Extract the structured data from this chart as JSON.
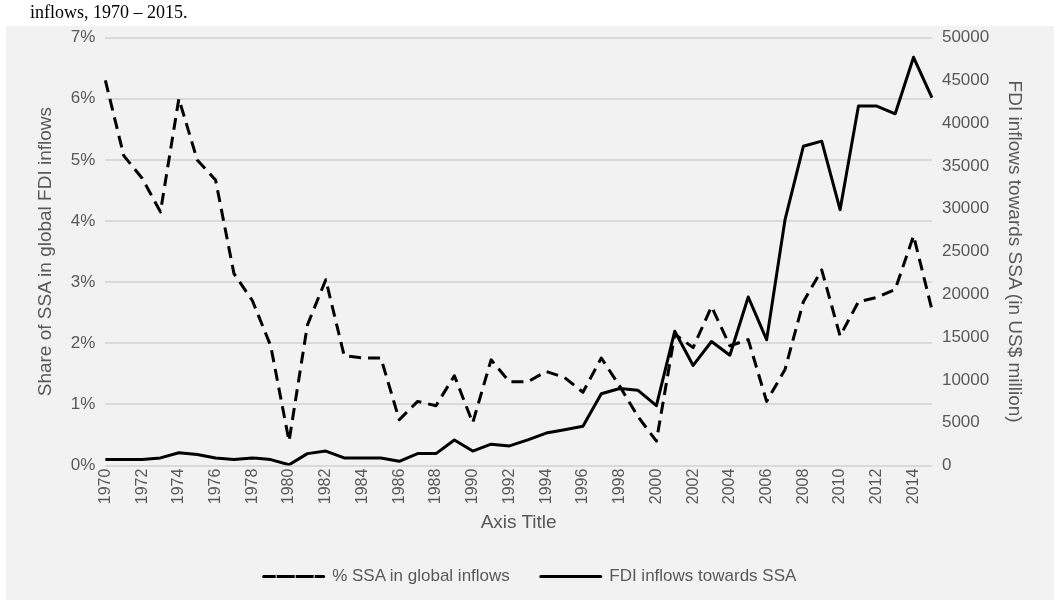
{
  "chart_data": {
    "type": "line",
    "title": "inflows, 1970 – 2015.",
    "xlabel": "Axis Title",
    "ylabel": "Share of SSA in global FDI inflows",
    "y2label": "FDI inflows towards SSA (in US$ million)",
    "categories": [
      "1970",
      null,
      "1972",
      null,
      "1974",
      null,
      "1976",
      null,
      "1978",
      null,
      "1980",
      null,
      "1982",
      null,
      "1984",
      null,
      "1986",
      null,
      "1988",
      null,
      "1990",
      null,
      "1992",
      null,
      "1994",
      null,
      "1996",
      null,
      "1998",
      null,
      "2000",
      null,
      "2002",
      null,
      "2004",
      null,
      "2006",
      null,
      "2008",
      null,
      "2010",
      null,
      "2012",
      null,
      "2014",
      null
    ],
    "series": [
      {
        "name": "% SSA in global inflows",
        "color": "#000000",
        "line_style": "dashed",
        "values": [
          6.3,
          5.07,
          4.7,
          4.15,
          6.0,
          5.0,
          4.67,
          3.14,
          2.7,
          1.96,
          0.4,
          2.3,
          3.04,
          1.8,
          1.76,
          1.76,
          0.75,
          1.05,
          0.98,
          1.47,
          0.7,
          1.73,
          1.37,
          1.37,
          1.54,
          1.44,
          1.2,
          1.76,
          1.3,
          0.8,
          0.4,
          2.15,
          1.93,
          2.6,
          1.96,
          2.06,
          1.05,
          1.57,
          2.68,
          3.2,
          2.12,
          2.68,
          2.75,
          2.88,
          3.76,
          2.55
        ]
      },
      {
        "name": "FDI inflows towards SSA",
        "color": "#000000",
        "line_style": "solid",
        "axis": "y2",
        "values": [
          700,
          700,
          700,
          900,
          1500,
          1300,
          900,
          700,
          900,
          700,
          100,
          1400,
          1700,
          900,
          900,
          900,
          500,
          1400,
          1400,
          3000,
          1700,
          2500,
          2300,
          3000,
          3800,
          4200,
          4600,
          8400,
          9000,
          8800,
          7000,
          15700,
          11700,
          14500,
          12900,
          19700,
          14700,
          28700,
          37300,
          37900,
          29900,
          42000,
          42000,
          41100,
          47700,
          43000
        ]
      }
    ],
    "ylim": [
      0,
      7
    ],
    "yticks": [
      {
        "value": 0,
        "label": "0%"
      },
      {
        "value": 1,
        "label": "1%"
      },
      {
        "value": 2,
        "label": "2%"
      },
      {
        "value": 3,
        "label": "3%"
      },
      {
        "value": 4,
        "label": "4%"
      },
      {
        "value": 5,
        "label": "5%"
      },
      {
        "value": 6,
        "label": "6%"
      },
      {
        "value": 7,
        "label": "7%"
      }
    ],
    "y2lim": [
      0,
      50000
    ],
    "y2ticks": [
      0,
      5000,
      10000,
      15000,
      20000,
      25000,
      30000,
      35000,
      40000,
      45000,
      50000
    ],
    "grid": "y",
    "legend": "bottom",
    "marker": "none"
  }
}
